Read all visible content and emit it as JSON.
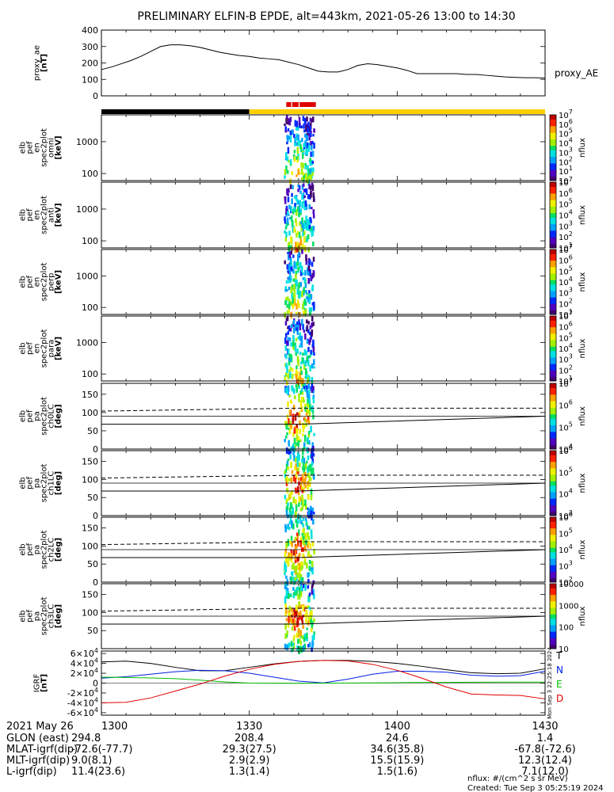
{
  "title": "PRELIMINARY ELFIN-B EPDE, alt=443km, 2021-05-26 13:00 to 14:30",
  "colors": {
    "black": "#000000",
    "red": "#e00000",
    "yellow": "#ffd000",
    "blue": "#0020e0",
    "green": "#00c000"
  },
  "status_bar": [
    {
      "from_min": 0,
      "to_min": 30,
      "color": "black"
    },
    {
      "from_min": 30,
      "to_min": 90,
      "color": "yellow"
    }
  ],
  "science_bar": [
    {
      "from_min": 37.5,
      "to_min": 38.5,
      "color": "red"
    },
    {
      "from_min": 38.7,
      "to_min": 40.0,
      "color": "red"
    },
    {
      "from_min": 40.2,
      "to_min": 43.5,
      "color": "red"
    }
  ],
  "chart_data": [
    {
      "id": "proxy_ae",
      "type": "line",
      "ylabel": [
        "proxy_ae",
        "[nT]"
      ],
      "ylim": [
        0,
        400
      ],
      "yticks": [
        "0",
        "100",
        "200",
        "300",
        "400"
      ],
      "series": [
        {
          "name": "proxy_AE",
          "x_min": [
            0,
            2,
            4,
            6,
            8,
            10,
            12,
            14,
            16,
            18,
            20,
            22,
            24,
            26,
            28,
            30,
            32,
            34,
            36,
            38,
            40,
            42,
            44,
            46,
            48,
            50,
            52,
            54,
            56,
            58,
            60,
            62,
            64,
            66,
            68,
            70,
            72,
            74,
            76,
            78,
            80,
            82,
            84,
            86,
            88,
            90
          ],
          "values": [
            160,
            175,
            195,
            215,
            240,
            270,
            300,
            310,
            310,
            305,
            295,
            280,
            265,
            255,
            245,
            240,
            230,
            225,
            220,
            205,
            190,
            170,
            150,
            145,
            145,
            160,
            185,
            195,
            190,
            180,
            170,
            155,
            135,
            135,
            135,
            135,
            135,
            130,
            130,
            125,
            120,
            115,
            112,
            110,
            110,
            108
          ]
        }
      ]
    },
    {
      "id": "omni",
      "type": "heatmap",
      "ylabel": [
        "elb",
        "pef",
        "en",
        "spec2plot",
        "omni",
        "[keV]"
      ],
      "y_scale": "log",
      "ylim": [
        60,
        7000
      ],
      "yticks": [
        "100",
        "1000"
      ],
      "colorbar": {
        "label": "nflux",
        "ticks": [
          "10",
          "10^1",
          "10^2",
          "10^3",
          "10^4",
          "10^5",
          "10^6",
          "10^7"
        ]
      },
      "signal_window_min": [
        37,
        43
      ]
    },
    {
      "id": "anti",
      "type": "heatmap",
      "ylabel": [
        "elb",
        "pef",
        "en",
        "spec2plot",
        "anti",
        "[keV]"
      ],
      "y_scale": "log",
      "ylim": [
        60,
        7000
      ],
      "yticks": [
        "100",
        "1000"
      ],
      "colorbar": {
        "label": "nflux",
        "ticks": [
          "10^1",
          "10^2",
          "10^3",
          "10^4",
          "10^5",
          "10^6",
          "10^7"
        ]
      },
      "signal_window_min": [
        37,
        43
      ]
    },
    {
      "id": "perp",
      "type": "heatmap",
      "ylabel": [
        "elb",
        "pef",
        "en",
        "spec2plot",
        "perp",
        "[keV]"
      ],
      "y_scale": "log",
      "ylim": [
        60,
        7000
      ],
      "yticks": [
        "100",
        "1000"
      ],
      "colorbar": {
        "label": "nflux",
        "ticks": [
          "10^1",
          "10^2",
          "10^3",
          "10^4",
          "10^5",
          "10^6",
          "10^7"
        ]
      },
      "signal_window_min": [
        37,
        43
      ]
    },
    {
      "id": "para",
      "type": "heatmap",
      "ylabel": [
        "elb",
        "pef",
        "en",
        "spec2plot",
        "para",
        "[keV]"
      ],
      "y_scale": "log",
      "ylim": [
        60,
        7000
      ],
      "yticks": [
        "100",
        "1000"
      ],
      "colorbar": {
        "label": "nflux",
        "ticks": [
          "10^1",
          "10^2",
          "10^3",
          "10^4",
          "10^5",
          "10^6",
          "10^7"
        ]
      },
      "signal_window_min": [
        37,
        43
      ]
    },
    {
      "id": "ch0LC",
      "type": "heatmap",
      "ylabel": [
        "elb",
        "pef",
        "pa",
        "spec2plot",
        "ch0LC",
        "[deg]"
      ],
      "y_scale": "linear",
      "ylim": [
        0,
        180
      ],
      "yticks": [
        "0",
        "50",
        "100",
        "150"
      ],
      "colorbar": {
        "label": "nflux",
        "ticks": [
          "10^4",
          "10^5",
          "10^6",
          "10^7"
        ]
      },
      "signal_window_min": [
        37,
        43
      ],
      "loss_cone": {
        "x_min": [
          0,
          40,
          90
        ],
        "lc": [
          68,
          68,
          90
        ],
        "alc": [
          104,
          112,
          112
        ]
      }
    },
    {
      "id": "ch1LC",
      "type": "heatmap",
      "ylabel": [
        "elb",
        "pef",
        "pa",
        "spec2plot",
        "ch1LC",
        "[deg]"
      ],
      "y_scale": "linear",
      "ylim": [
        0,
        180
      ],
      "yticks": [
        "0",
        "50",
        "100",
        "150"
      ],
      "colorbar": {
        "label": "nflux",
        "ticks": [
          "10^3",
          "10^4",
          "10^5",
          "10^6"
        ]
      },
      "signal_window_min": [
        37,
        43
      ],
      "loss_cone": {
        "x_min": [
          0,
          40,
          90
        ],
        "lc": [
          68,
          68,
          90
        ],
        "alc": [
          104,
          112,
          112
        ]
      }
    },
    {
      "id": "ch2LC",
      "type": "heatmap",
      "ylabel": [
        "elb",
        "pef",
        "pa",
        "spec2plot",
        "ch2LC",
        "[deg]"
      ],
      "y_scale": "linear",
      "ylim": [
        0,
        180
      ],
      "yticks": [
        "0",
        "50",
        "100",
        "150"
      ],
      "colorbar": {
        "label": "nflux",
        "ticks": [
          "10^2",
          "10^3",
          "10^4",
          "10^5",
          "10^6"
        ]
      },
      "signal_window_min": [
        37,
        43
      ],
      "loss_cone": {
        "x_min": [
          0,
          40,
          90
        ],
        "lc": [
          68,
          68,
          90
        ],
        "alc": [
          104,
          112,
          112
        ]
      }
    },
    {
      "id": "ch3LC",
      "type": "heatmap",
      "ylabel": [
        "elb",
        "pef",
        "pa",
        "spec2plot",
        "ch3LC",
        "[deg]"
      ],
      "y_scale": "linear",
      "ylim": [
        0,
        180
      ],
      "yticks": [
        "50",
        "100",
        "150"
      ],
      "colorbar": {
        "label": "nflux",
        "ticks": [
          "10",
          "100",
          "1000",
          "10000"
        ]
      },
      "signal_window_min": [
        37,
        43
      ],
      "loss_cone": {
        "x_min": [
          0,
          40,
          90
        ],
        "lc": [
          68,
          68,
          90
        ],
        "alc": [
          104,
          112,
          112
        ]
      }
    },
    {
      "id": "igrf",
      "type": "line",
      "ylabel": [
        "IGRF",
        "[nT]"
      ],
      "ylim": [
        -65000,
        65000
      ],
      "yticks": [
        "-6×10^4",
        "-4×10^4",
        "-2×10^4",
        "0",
        "2×10^4",
        "4×10^4",
        "6×10^4"
      ],
      "x_min": [
        0,
        5,
        10,
        15,
        20,
        25,
        30,
        35,
        40,
        45,
        50,
        55,
        60,
        65,
        70,
        75,
        80,
        85,
        90
      ],
      "series": [
        {
          "name": "T",
          "color": "black",
          "values": [
            43000,
            44500,
            40000,
            32000,
            25000,
            25000,
            32000,
            39000,
            44000,
            46000,
            46000,
            44000,
            40000,
            34000,
            27000,
            21000,
            19000,
            20000,
            29000
          ]
        },
        {
          "name": "N",
          "color": "blue",
          "values": [
            10000,
            13000,
            18000,
            23000,
            26000,
            25000,
            20000,
            12000,
            4000,
            500,
            8000,
            18000,
            24000,
            24000,
            22000,
            16000,
            14000,
            15000,
            24000
          ]
        },
        {
          "name": "E",
          "color": "green",
          "values": [
            12000,
            11500,
            10500,
            9000,
            6000,
            2500,
            0,
            -500,
            -400,
            -200,
            200,
            500,
            900,
            1200,
            1500,
            1800,
            2000,
            2000,
            2000
          ]
        },
        {
          "name": "D",
          "color": "red",
          "values": [
            -40000,
            -39000,
            -30000,
            -16000,
            -2000,
            14000,
            28000,
            38000,
            44000,
            46000,
            45000,
            38000,
            26000,
            10000,
            -8000,
            -22000,
            -24000,
            -25000,
            -32000
          ]
        }
      ]
    }
  ],
  "side_stamp": "Mon Sep  3 22:25:18 2024",
  "x_ticks": [
    {
      "label": "1300",
      "t": 0
    },
    {
      "label": "1330",
      "t": 30
    },
    {
      "label": "1400",
      "t": 60
    },
    {
      "label": "1430",
      "t": 90
    }
  ],
  "date_label": "2021 May 26",
  "footer_rows": [
    {
      "label": "GLON (east)",
      "values": [
        "294.8",
        "208.4",
        "24.6",
        "1.4"
      ]
    },
    {
      "label": "MLAT-igrf(dip)",
      "values": [
        "-72.6(-77.7)",
        "29.3(27.5)",
        "34.6(35.8)",
        "-67.8(-72.6)"
      ]
    },
    {
      "label": "MLT-igrf(dip)",
      "values": [
        "9.0(8.1)",
        "2.9(2.9)",
        "15.5(15.9)",
        "12.3(12.4)"
      ]
    },
    {
      "label": "L-igrf(dip)",
      "values": [
        "11.4(23.6)",
        "1.3(1.4)",
        "1.5(1.6)",
        "7.1(12.0)"
      ]
    }
  ],
  "unit_note": "nflux: #/(cm^2 s sr MeV)",
  "created_note": "Created: Tue Sep  3 05:25:19 2024"
}
